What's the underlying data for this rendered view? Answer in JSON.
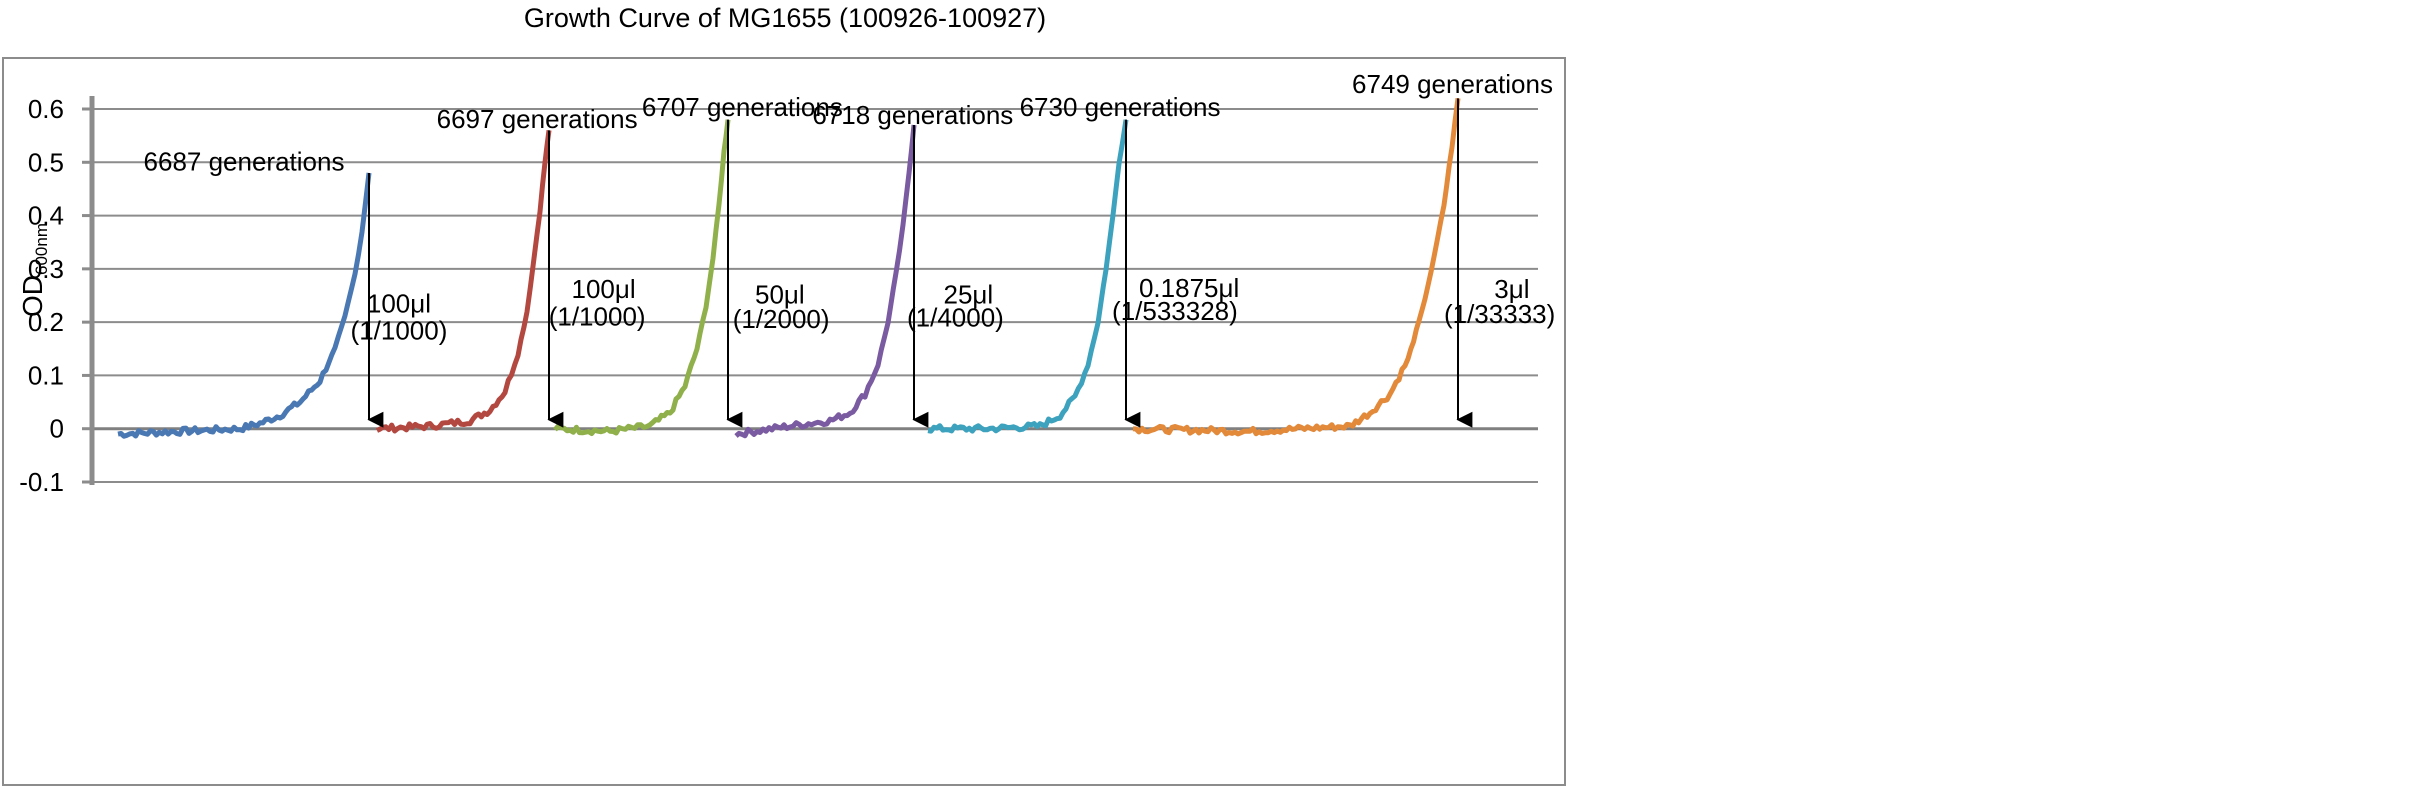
{
  "chart_data": {
    "type": "line",
    "title": "Growth Curve of MG1655 (100926-100927)",
    "ylabel": "OD",
    "ylabel_subscript": "600nm",
    "xlabel": "",
    "ylim": [
      -0.1,
      0.6
    ],
    "yticks": [
      "-0.1",
      "0",
      "0.1",
      "0.2",
      "0.3",
      "0.4",
      "0.5",
      "0.6"
    ],
    "grid": true,
    "legend": "none",
    "series": [
      {
        "color": "#4a78b3",
        "x": [
          118,
          180,
          240,
          260,
          280,
          300,
          320,
          335,
          345,
          355,
          362,
          369
        ],
        "values": [
          -0.01,
          -0.005,
          0.0,
          0.01,
          0.025,
          0.05,
          0.09,
          0.15,
          0.21,
          0.29,
          0.37,
          0.48
        ]
      },
      {
        "color": "#b34840",
        "x": [
          377,
          430,
          470,
          490,
          505,
          518,
          527,
          534,
          540,
          545,
          549
        ],
        "values": [
          0.0,
          0.005,
          0.015,
          0.035,
          0.07,
          0.14,
          0.22,
          0.32,
          0.41,
          0.5,
          0.56
        ]
      },
      {
        "color": "#8fb04a",
        "x": [
          555,
          610,
          650,
          670,
          685,
          697,
          706,
          713,
          719,
          724,
          728
        ],
        "values": [
          0.0,
          -0.005,
          0.005,
          0.03,
          0.08,
          0.15,
          0.23,
          0.32,
          0.42,
          0.52,
          0.58
        ]
      },
      {
        "color": "#7a5aa0",
        "x": [
          736,
          790,
          830,
          850,
          865,
          878,
          888,
          896,
          903,
          909,
          914
        ],
        "values": [
          -0.01,
          0.005,
          0.015,
          0.03,
          0.065,
          0.12,
          0.2,
          0.29,
          0.38,
          0.48,
          0.57
        ]
      },
      {
        "color": "#3da2bd",
        "x": [
          928,
          990,
          1040,
          1060,
          1075,
          1088,
          1098,
          1106,
          1113,
          1119,
          1126
        ],
        "values": [
          0.0,
          0.0,
          0.005,
          0.025,
          0.06,
          0.12,
          0.2,
          0.3,
          0.4,
          0.5,
          0.58
        ]
      },
      {
        "color": "#e2893a",
        "x": [
          1133,
          1250,
          1350,
          1370,
          1390,
          1408,
          1422,
          1434,
          1444,
          1452,
          1458
        ],
        "values": [
          0.0,
          -0.005,
          0.005,
          0.03,
          0.065,
          0.13,
          0.22,
          0.32,
          0.42,
          0.53,
          0.62
        ]
      }
    ],
    "annotations": [
      {
        "generations": "6687 generations",
        "volume": "100μl",
        "dilution": "(1/1000)"
      },
      {
        "generations": "6697 generations",
        "volume": "100μl",
        "dilution": "(1/1000)"
      },
      {
        "generations": "6707 generations",
        "volume": "50μl",
        "dilution": "(1/2000)"
      },
      {
        "generations": "6718 generations",
        "volume": "25μl",
        "dilution": "(1/4000)"
      },
      {
        "generations": "6730 generations",
        "volume": "0.1875μl",
        "dilution": "(1/533328)"
      },
      {
        "generations": "6749 generations",
        "volume": "3μl",
        "dilution": "(1/33333)"
      }
    ]
  }
}
